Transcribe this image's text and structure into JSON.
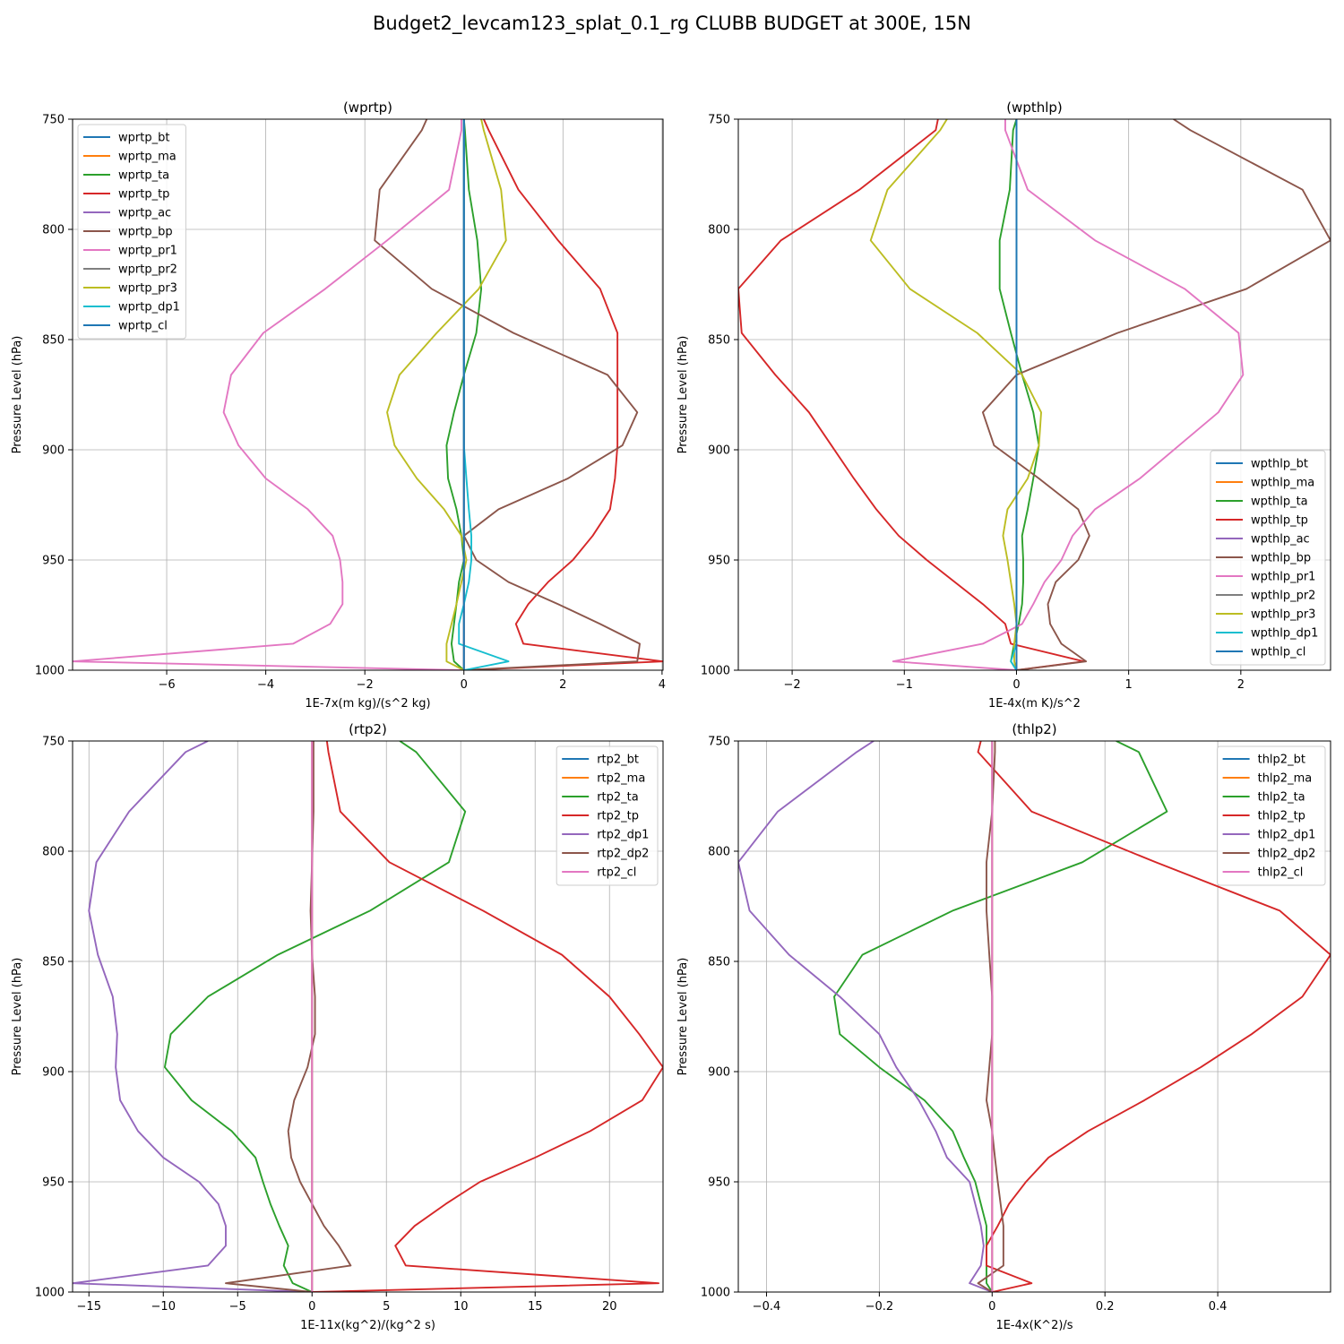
{
  "figure_title": "Budget2_levcam123_splat_0.1_rg CLUBB BUDGET at 300E, 15N",
  "colors": {
    "C0": "#1f77b4",
    "C1": "#ff7f0e",
    "C2": "#2ca02c",
    "C3": "#d62728",
    "C4": "#9467bd",
    "C5": "#8c564b",
    "C6": "#e377c2",
    "C7": "#7f7f7f",
    "C8": "#bcbd22",
    "C9": "#17becf"
  },
  "chart_data": [
    {
      "type": "line",
      "title": "(wprtp)",
      "xlabel": "1E-7x(m kg)/(s^2 kg)",
      "ylabel": "Pressure Level (hPa)",
      "xlim": [
        -7.9,
        4.02
      ],
      "ylim": [
        1000,
        750
      ],
      "xticks": [
        -6,
        -4,
        -2,
        0,
        2,
        4
      ],
      "yticks": [
        750,
        800,
        850,
        900,
        950,
        1000
      ],
      "grid": true,
      "legend_position": "upper-left",
      "levels": [
        750,
        755,
        782,
        805,
        827,
        847,
        866,
        883,
        898,
        913,
        927,
        939,
        950,
        960,
        970,
        979,
        988,
        996,
        1000
      ],
      "series": [
        {
          "name": "wprtp_bt",
          "color": "C0",
          "values": [
            0,
            0,
            0,
            0,
            0,
            0,
            0,
            0,
            0,
            0,
            0,
            0,
            0,
            0,
            0,
            0,
            0,
            0,
            0
          ]
        },
        {
          "name": "wprtp_ma",
          "color": "C1",
          "values": [
            0,
            0,
            0,
            0,
            0,
            0,
            0,
            0,
            0,
            0,
            0,
            0,
            0,
            0,
            0,
            0,
            0,
            0,
            0
          ]
        },
        {
          "name": "wprtp_ta",
          "color": "C2",
          "values": [
            0.0,
            0.02,
            0.1,
            0.27,
            0.35,
            0.25,
            0.0,
            -0.2,
            -0.35,
            -0.32,
            -0.15,
            -0.05,
            0.0,
            -0.1,
            -0.15,
            -0.2,
            -0.25,
            -0.2,
            0.0
          ]
        },
        {
          "name": "wprtp_tp",
          "color": "C3",
          "values": [
            0.4,
            0.5,
            1.1,
            1.9,
            2.75,
            3.1,
            3.1,
            3.1,
            3.1,
            3.05,
            2.95,
            2.6,
            2.2,
            1.7,
            1.3,
            1.05,
            1.2,
            4.02,
            0.0
          ]
        },
        {
          "name": "wprtp_ac",
          "color": "C4",
          "values": [
            0,
            0,
            0,
            0,
            0,
            0,
            0,
            0,
            0,
            0,
            0,
            0,
            0,
            0,
            0,
            0,
            0,
            0,
            0
          ]
        },
        {
          "name": "wprtp_bp",
          "color": "C5",
          "values": [
            -0.75,
            -0.85,
            -1.7,
            -1.8,
            -0.65,
            1.0,
            2.9,
            3.5,
            3.2,
            2.1,
            0.7,
            0.0,
            0.25,
            0.9,
            1.9,
            2.75,
            3.55,
            3.5,
            0.0
          ]
        },
        {
          "name": "wprtp_pr1",
          "color": "C6",
          "values": [
            -0.05,
            -0.05,
            -0.3,
            -1.55,
            -2.8,
            -4.05,
            -4.7,
            -4.85,
            -4.55,
            -4.0,
            -3.15,
            -2.65,
            -2.5,
            -2.45,
            -2.45,
            -2.7,
            -3.45,
            -7.9,
            0.0
          ]
        },
        {
          "name": "wprtp_pr2",
          "color": "C7",
          "values": [
            0,
            0,
            0,
            0,
            0,
            0,
            0,
            0,
            0,
            0,
            0,
            0,
            0,
            0,
            0,
            0,
            0,
            0,
            0
          ]
        },
        {
          "name": "wprtp_pr3",
          "color": "C8",
          "values": [
            0.35,
            0.4,
            0.75,
            0.85,
            0.3,
            -0.55,
            -1.3,
            -1.55,
            -1.4,
            -0.95,
            -0.4,
            -0.05,
            0.05,
            -0.05,
            -0.15,
            -0.25,
            -0.35,
            -0.35,
            0.0
          ]
        },
        {
          "name": "wprtp_dp1",
          "color": "C9",
          "values": [
            0,
            0,
            0,
            0,
            0,
            0,
            0,
            0,
            0,
            0.05,
            0.1,
            0.15,
            0.15,
            0.1,
            0.0,
            -0.1,
            -0.1,
            0.9,
            0.0
          ]
        },
        {
          "name": "wprtp_cl",
          "color": "C0",
          "values": [
            0,
            0,
            0,
            0,
            0,
            0,
            0,
            0,
            0,
            0,
            0,
            0,
            0,
            0,
            0,
            0,
            0,
            0,
            0
          ]
        }
      ]
    },
    {
      "type": "line",
      "title": "(wpthlp)",
      "xlabel": "1E-4x(m K)/s^2",
      "ylabel": "Pressure Level (hPa)",
      "xlim": [
        -2.48,
        2.8
      ],
      "ylim": [
        1000,
        750
      ],
      "xticks": [
        -2,
        -1,
        0,
        1,
        2
      ],
      "yticks": [
        750,
        800,
        850,
        900,
        950,
        1000
      ],
      "grid": true,
      "legend_position": "lower-right",
      "levels": [
        750,
        755,
        782,
        805,
        827,
        847,
        866,
        883,
        898,
        913,
        927,
        939,
        950,
        960,
        970,
        979,
        988,
        996,
        1000
      ],
      "series": [
        {
          "name": "wpthlp_bt",
          "color": "C0",
          "values": [
            0,
            0,
            0,
            0,
            0,
            0,
            0,
            0,
            0,
            0,
            0,
            0,
            0,
            0,
            0,
            0,
            0,
            0,
            0
          ]
        },
        {
          "name": "wpthlp_ma",
          "color": "C1",
          "values": [
            0,
            0,
            0,
            0,
            0,
            0,
            0,
            0,
            0,
            0,
            0,
            0,
            0,
            0,
            0,
            0,
            0,
            0,
            0
          ]
        },
        {
          "name": "wpthlp_ta",
          "color": "C2",
          "values": [
            0.0,
            -0.03,
            -0.06,
            -0.15,
            -0.15,
            -0.05,
            0.05,
            0.15,
            0.2,
            0.15,
            0.1,
            0.05,
            0.06,
            0.06,
            0.05,
            0.02,
            -0.02,
            -0.05,
            0.0
          ]
        },
        {
          "name": "wpthlp_tp",
          "color": "C3",
          "values": [
            -0.7,
            -0.72,
            -1.4,
            -2.1,
            -2.48,
            -2.45,
            -2.15,
            -1.85,
            -1.65,
            -1.45,
            -1.25,
            -1.05,
            -0.8,
            -0.55,
            -0.3,
            -0.1,
            -0.05,
            0.6,
            0.0
          ]
        },
        {
          "name": "wpthlp_ac",
          "color": "C4",
          "values": [
            0,
            0,
            0,
            0,
            0,
            0,
            0,
            0,
            0,
            0,
            0,
            0,
            0,
            0,
            0,
            0,
            0,
            0,
            0
          ]
        },
        {
          "name": "wpthlp_bp",
          "color": "C5",
          "values": [
            1.4,
            1.55,
            2.55,
            2.8,
            2.05,
            0.9,
            0.0,
            -0.3,
            -0.2,
            0.2,
            0.55,
            0.65,
            0.55,
            0.35,
            0.28,
            0.3,
            0.4,
            0.62,
            0.0
          ]
        },
        {
          "name": "wpthlp_pr1",
          "color": "C6",
          "values": [
            -0.1,
            -0.1,
            0.1,
            0.7,
            1.5,
            1.98,
            2.02,
            1.8,
            1.45,
            1.1,
            0.7,
            0.5,
            0.4,
            0.25,
            0.15,
            0.05,
            -0.3,
            -1.1,
            0.0
          ]
        },
        {
          "name": "wpthlp_pr2",
          "color": "C7",
          "values": [
            0,
            0,
            0,
            0,
            0,
            0,
            0,
            0,
            0,
            0,
            0,
            0,
            0,
            0,
            0,
            0,
            0,
            0,
            0
          ]
        },
        {
          "name": "wpthlp_pr3",
          "color": "C8",
          "values": [
            -0.62,
            -0.68,
            -1.15,
            -1.3,
            -0.95,
            -0.35,
            0.05,
            0.22,
            0.2,
            0.1,
            -0.08,
            -0.12,
            -0.08,
            -0.05,
            -0.02,
            0.0,
            -0.02,
            -0.02,
            0.0
          ]
        },
        {
          "name": "wpthlp_dp1",
          "color": "C9",
          "values": [
            0,
            0,
            0,
            0,
            0,
            0,
            0,
            0,
            0,
            0,
            0,
            0,
            0,
            0,
            0,
            0,
            0,
            -0.05,
            0.0
          ]
        },
        {
          "name": "wpthlp_cl",
          "color": "C0",
          "values": [
            0,
            0,
            0,
            0,
            0,
            0,
            0,
            0,
            0,
            0,
            0,
            0,
            0,
            0,
            0,
            0,
            0,
            0,
            0
          ]
        }
      ]
    },
    {
      "type": "line",
      "title": "(rtp2)",
      "xlabel": "1E-11x(kg^2)/(kg^2 s)",
      "ylabel": "Pressure Level (hPa)",
      "xlim": [
        -16.1,
        23.6
      ],
      "ylim": [
        1000,
        750
      ],
      "xticks": [
        -15,
        -10,
        -5,
        0,
        5,
        10,
        15,
        20
      ],
      "yticks": [
        750,
        800,
        850,
        900,
        950,
        1000
      ],
      "grid": true,
      "legend_position": "upper-right",
      "levels": [
        750,
        755,
        782,
        805,
        827,
        847,
        866,
        883,
        898,
        913,
        927,
        939,
        950,
        960,
        970,
        979,
        988,
        996,
        1000
      ],
      "series": [
        {
          "name": "rtp2_bt",
          "color": "C0",
          "values": [
            0,
            0,
            0,
            0,
            0,
            0,
            0,
            0,
            0,
            0,
            0,
            0,
            0,
            0,
            0,
            0,
            0,
            0,
            0
          ]
        },
        {
          "name": "rtp2_ma",
          "color": "C1",
          "values": [
            0,
            0,
            0,
            0,
            0,
            0,
            0,
            0,
            0,
            0,
            0,
            0,
            0,
            0,
            0,
            0,
            0,
            0,
            0
          ]
        },
        {
          "name": "rtp2_ta",
          "color": "C2",
          "values": [
            5.9,
            7.0,
            10.3,
            9.2,
            3.9,
            -2.3,
            -7.0,
            -9.5,
            -9.9,
            -8.1,
            -5.4,
            -3.8,
            -3.3,
            -2.8,
            -2.2,
            -1.6,
            -1.9,
            -1.3,
            0.0
          ]
        },
        {
          "name": "rtp2_tp",
          "color": "C3",
          "values": [
            1.0,
            1.1,
            1.9,
            5.2,
            11.5,
            16.8,
            20.0,
            22.0,
            23.6,
            22.2,
            18.7,
            15.0,
            11.3,
            9.0,
            6.9,
            5.6,
            6.3,
            23.3,
            0.0
          ]
        },
        {
          "name": "rtp2_dp1",
          "color": "C4",
          "values": [
            -7.0,
            -8.5,
            -12.3,
            -14.5,
            -15.0,
            -14.4,
            -13.4,
            -13.1,
            -13.2,
            -12.9,
            -11.7,
            -10.0,
            -7.6,
            -6.3,
            -5.8,
            -5.8,
            -7.0,
            -16.1,
            0.0
          ]
        },
        {
          "name": "rtp2_dp2",
          "color": "C5",
          "values": [
            0.1,
            0.1,
            0.1,
            0.0,
            -0.1,
            0.0,
            0.2,
            0.2,
            -0.3,
            -1.2,
            -1.6,
            -1.4,
            -0.8,
            0.0,
            0.8,
            1.8,
            2.6,
            -5.8,
            0.0
          ]
        },
        {
          "name": "rtp2_cl",
          "color": "C6",
          "values": [
            0,
            0,
            0,
            0,
            0,
            0,
            0,
            0,
            0,
            0,
            0,
            0,
            0,
            0,
            0,
            0,
            0,
            0,
            0
          ]
        }
      ]
    },
    {
      "type": "line",
      "title": "(thlp2)",
      "xlabel": "1E-4x(K^2)/s",
      "ylabel": "Pressure Level (hPa)",
      "xlim": [
        -0.45,
        0.6
      ],
      "ylim": [
        1000,
        750
      ],
      "xticks": [
        -0.4,
        -0.2,
        0.0,
        0.2,
        0.4
      ],
      "yticks": [
        750,
        800,
        850,
        900,
        950,
        1000
      ],
      "grid": true,
      "legend_position": "upper-right",
      "levels": [
        750,
        755,
        782,
        805,
        827,
        847,
        866,
        883,
        898,
        913,
        927,
        939,
        950,
        960,
        970,
        979,
        988,
        996,
        1000
      ],
      "series": [
        {
          "name": "thlp2_bt",
          "color": "C0",
          "values": [
            0,
            0,
            0,
            0,
            0,
            0,
            0,
            0,
            0,
            0,
            0,
            0,
            0,
            0,
            0,
            0,
            0,
            0,
            0
          ]
        },
        {
          "name": "thlp2_ma",
          "color": "C1",
          "values": [
            0,
            0,
            0,
            0,
            0,
            0,
            0,
            0,
            0,
            0,
            0,
            0,
            0,
            0,
            0,
            0,
            0,
            0,
            0
          ]
        },
        {
          "name": "thlp2_ta",
          "color": "C2",
          "values": [
            0.22,
            0.26,
            0.31,
            0.16,
            -0.07,
            -0.23,
            -0.28,
            -0.27,
            -0.2,
            -0.12,
            -0.07,
            -0.05,
            -0.03,
            -0.02,
            -0.01,
            -0.01,
            -0.01,
            -0.01,
            0.0
          ]
        },
        {
          "name": "thlp2_tp",
          "color": "C3",
          "values": [
            -0.02,
            -0.025,
            0.07,
            0.29,
            0.51,
            0.6,
            0.55,
            0.46,
            0.37,
            0.27,
            0.17,
            0.1,
            0.06,
            0.03,
            0.01,
            -0.01,
            -0.01,
            0.07,
            0.0
          ]
        },
        {
          "name": "thlp2_dp1",
          "color": "C4",
          "values": [
            -0.21,
            -0.24,
            -0.38,
            -0.45,
            -0.43,
            -0.36,
            -0.27,
            -0.2,
            -0.17,
            -0.13,
            -0.1,
            -0.08,
            -0.04,
            -0.03,
            -0.02,
            -0.015,
            -0.02,
            -0.04,
            0.0
          ]
        },
        {
          "name": "thlp2_dp2",
          "color": "C5",
          "values": [
            0.005,
            0.005,
            0.0,
            -0.01,
            -0.01,
            -0.005,
            0.0,
            0.0,
            -0.005,
            -0.01,
            0.0,
            0.005,
            0.01,
            0.015,
            0.02,
            0.02,
            0.02,
            -0.025,
            0.0
          ]
        },
        {
          "name": "thlp2_cl",
          "color": "C6",
          "values": [
            0,
            0,
            0,
            0,
            0,
            0,
            0,
            0,
            0,
            0,
            0,
            0,
            0,
            0,
            0,
            0,
            0,
            0,
            0
          ]
        }
      ]
    }
  ]
}
